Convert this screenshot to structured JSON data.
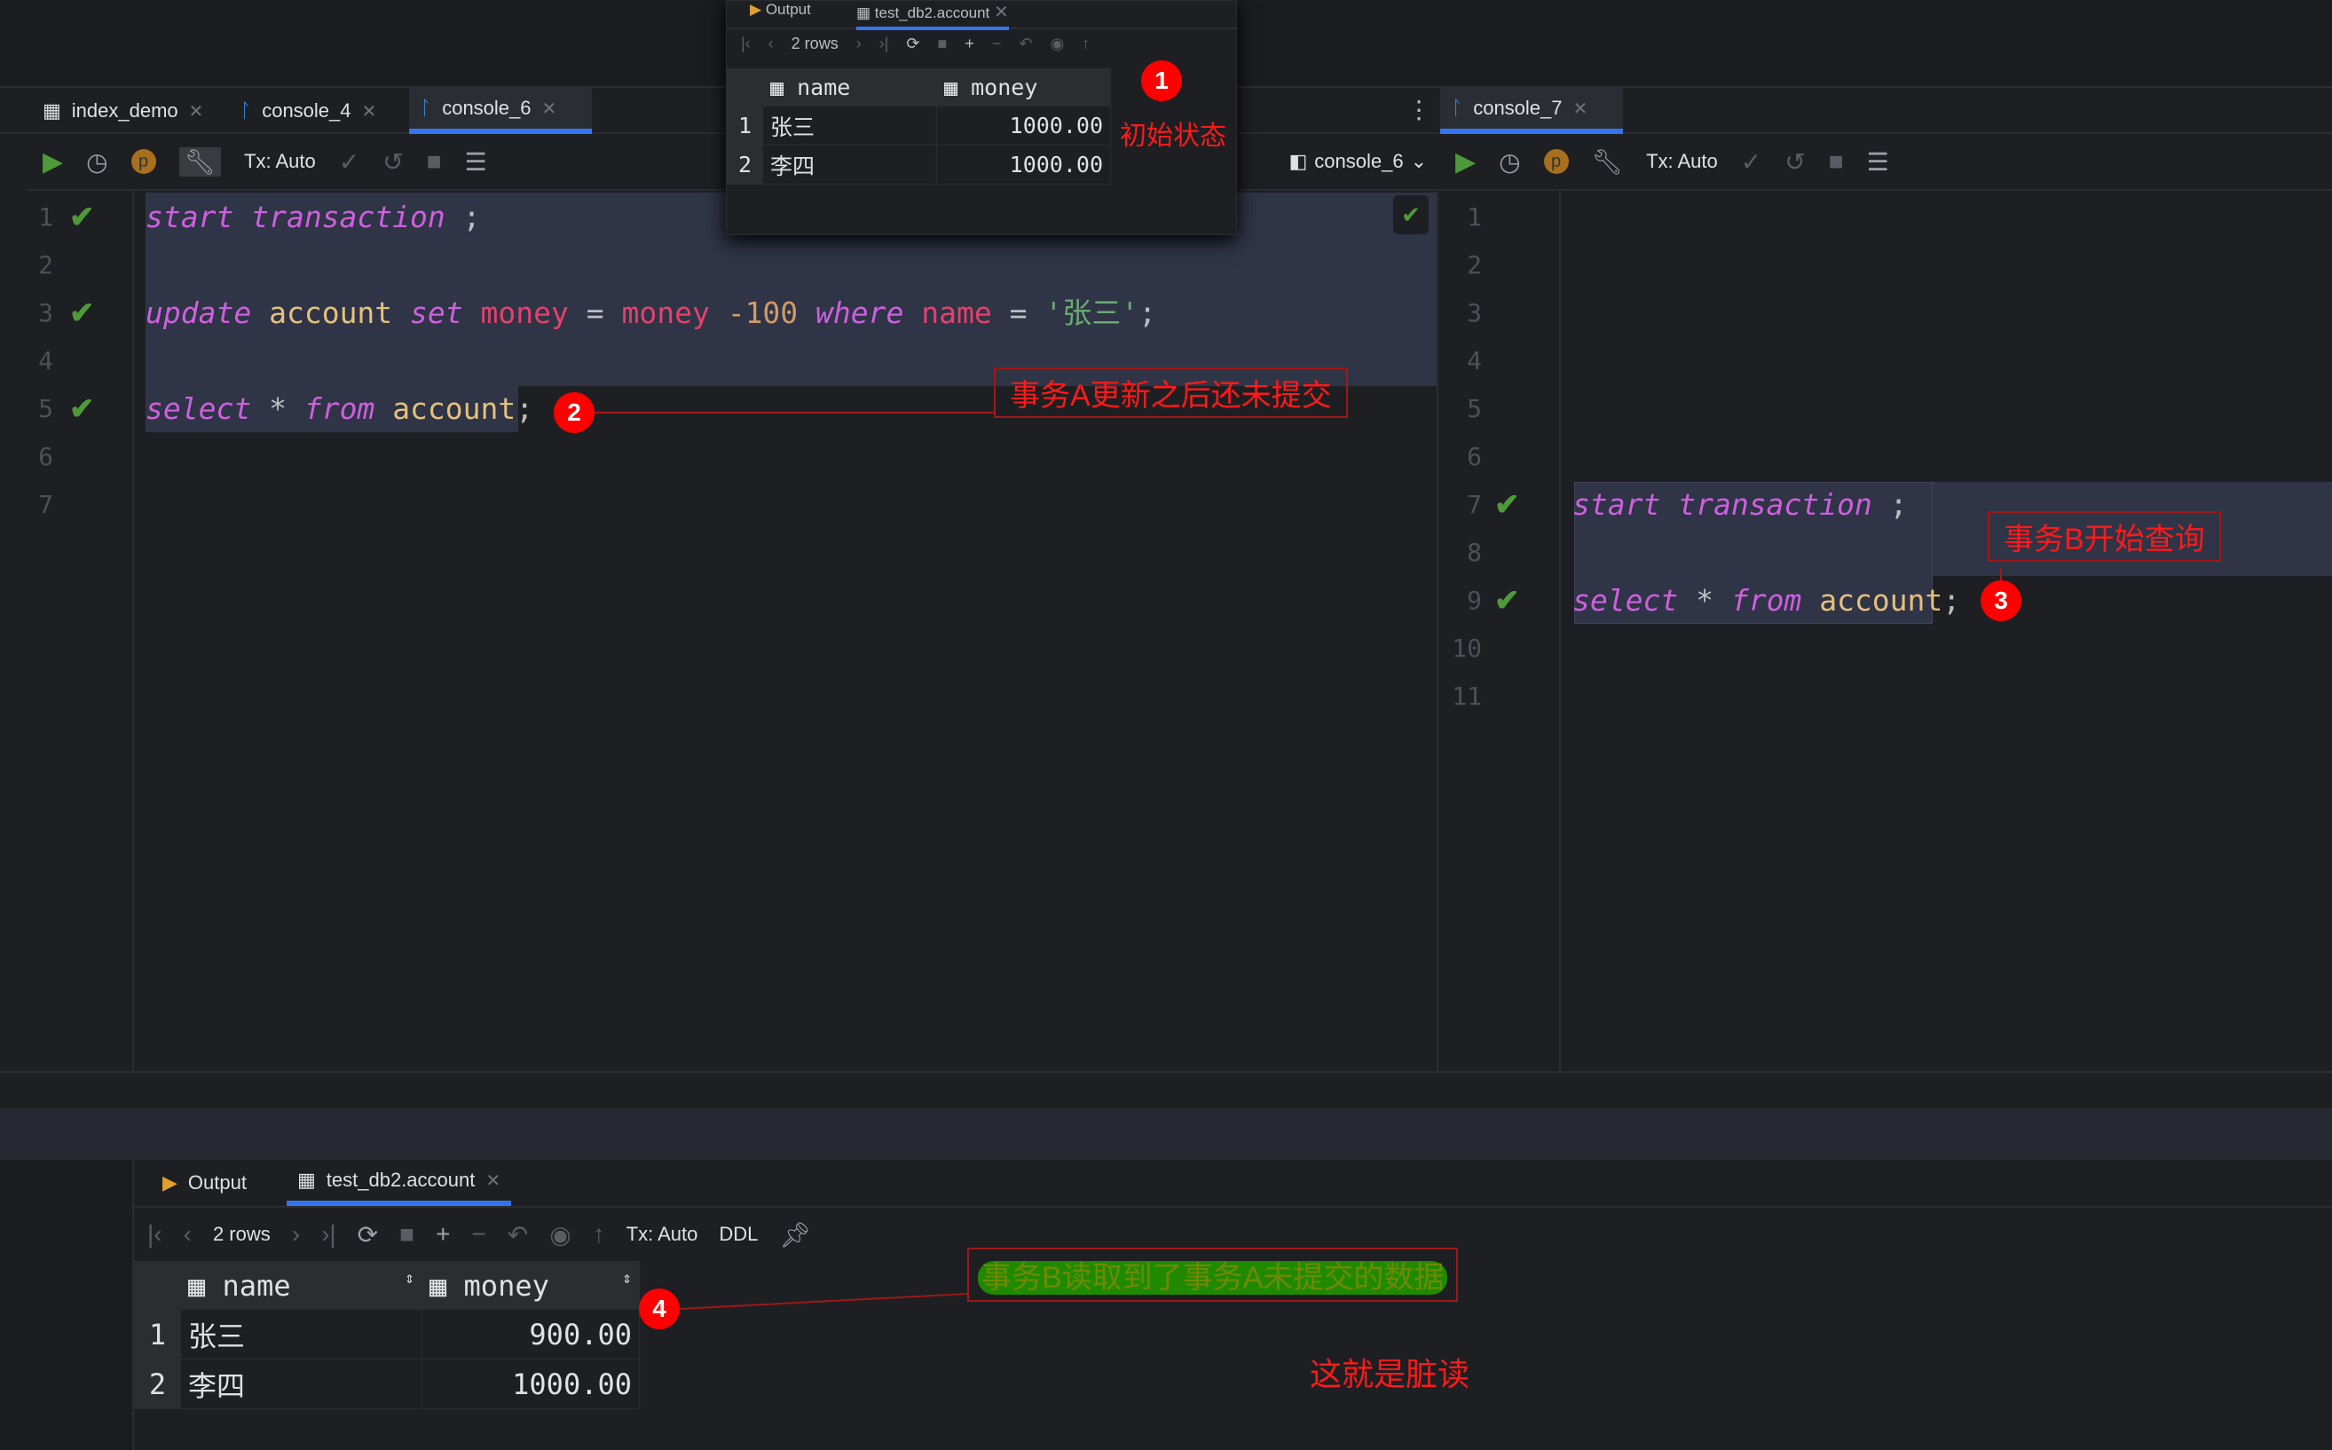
{
  "left_tabs": [
    {
      "label": "index_demo",
      "icon": "table-icon"
    },
    {
      "label": "console_4",
      "icon": "mysql-dolphin-icon"
    },
    {
      "label": "console_6",
      "icon": "mysql-dolphin-icon",
      "active": true
    }
  ],
  "right_tabs": [
    {
      "label": "console_7",
      "icon": "mysql-dolphin-icon",
      "active": true
    }
  ],
  "toolbar": {
    "tx": "Tx: Auto",
    "session": "console_6"
  },
  "left_editor": {
    "lines": [
      "1",
      "2",
      "3",
      "4",
      "5",
      "6",
      "7"
    ],
    "code": {
      "l1_kw1": "start",
      "l1_kw2": "transaction",
      "l1_end": " ;",
      "l3_kw": "update",
      "l3_tbl": "account",
      "l3_set": "set",
      "l3_col": "money",
      "l3_eq": " = ",
      "l3_col2": "money",
      "l3_num": " -100",
      "l3_where": "where",
      "l3_col3": "name",
      "l3_eq2": " = ",
      "l3_str": "'张三'",
      "l3_end": ";",
      "l5_kw": "select",
      "l5_star": " * ",
      "l5_from": "from",
      "l5_tbl": "account",
      "l5_end": ";"
    }
  },
  "right_editor": {
    "lines": [
      "1",
      "2",
      "3",
      "4",
      "5",
      "6",
      "7",
      "8",
      "9",
      "10",
      "11"
    ],
    "code": {
      "l7_kw1": "start",
      "l7_kw2": "transaction",
      "l7_end": " ;",
      "l9_kw": "select",
      "l9_star": " * ",
      "l9_from": "from",
      "l9_tbl": "account",
      "l9_end": ";"
    }
  },
  "popup": {
    "tabs": [
      "Output",
      "test_db2.account"
    ],
    "rows_label": "2 rows",
    "columns": [
      "name",
      "money"
    ],
    "rows": [
      [
        "1",
        "张三",
        "1000.00"
      ],
      [
        "2",
        "李四",
        "1000.00"
      ]
    ]
  },
  "results": {
    "tabs": [
      "Output",
      "test_db2.account"
    ],
    "rows_label": "2 rows",
    "tx": "Tx: Auto",
    "ddl": "DDL",
    "columns": [
      "name",
      "money"
    ],
    "rows": [
      [
        "1",
        "张三",
        "900.00"
      ],
      [
        "2",
        "李四",
        "1000.00"
      ]
    ]
  },
  "annotations": {
    "n1": "1",
    "t1": "初始状态",
    "n2": "2",
    "t2": "事务A更新之后还未提交",
    "n3": "3",
    "t3": "事务B开始查询",
    "n4": "4",
    "t4": "事务B读取到了事务A未提交的数据",
    "t5": "这就是脏读"
  },
  "colors": {
    "accent": "#3574f0",
    "annotation": "#ff0000",
    "highlight": "#1f8a00"
  }
}
